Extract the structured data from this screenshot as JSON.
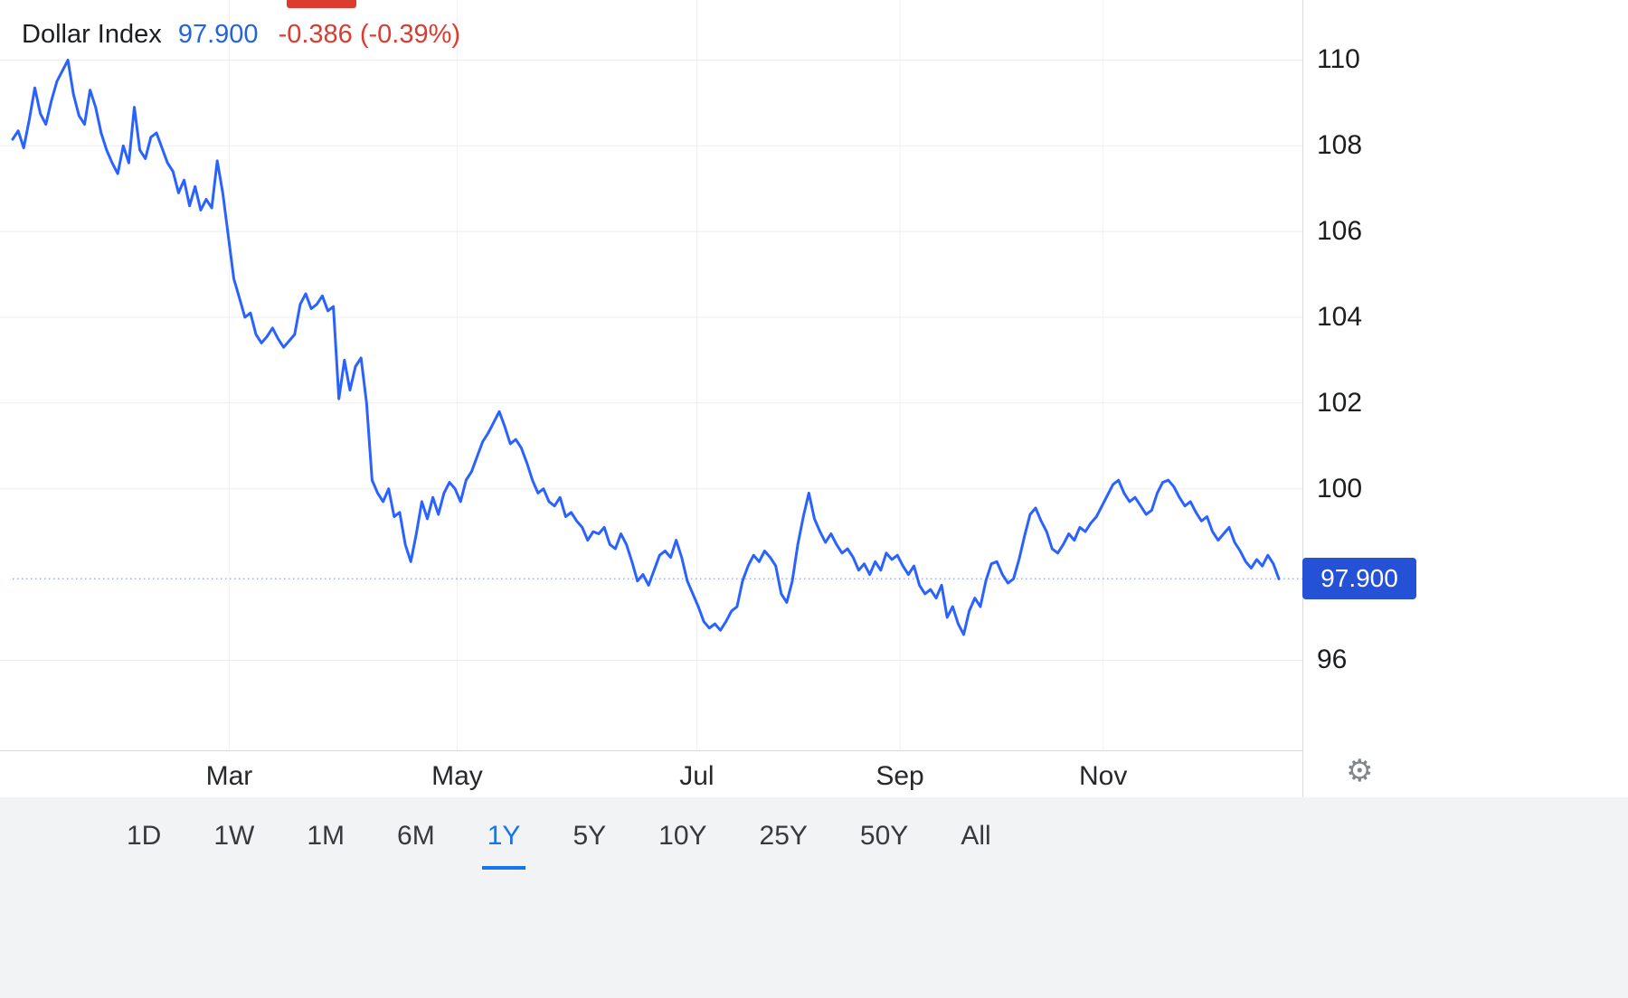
{
  "header": {
    "title": "Dollar Index",
    "price": "97.900",
    "change": "-0.386 (-0.39%)"
  },
  "toolbar": {
    "ranges": [
      {
        "label": "1D",
        "active": false
      },
      {
        "label": "1W",
        "active": false
      },
      {
        "label": "1M",
        "active": false
      },
      {
        "label": "6M",
        "active": false
      },
      {
        "label": "1Y",
        "active": true
      },
      {
        "label": "5Y",
        "active": false
      },
      {
        "label": "10Y",
        "active": false
      },
      {
        "label": "25Y",
        "active": false
      },
      {
        "label": "50Y",
        "active": false
      },
      {
        "label": "All",
        "active": false
      }
    ]
  },
  "icons": {
    "settings": "gear-icon"
  },
  "colors": {
    "line": "#2962ff",
    "badge_bg": "#2451d6",
    "header_blue": "#2264e0",
    "red": "#dc3b30",
    "grid": "#ebedf0",
    "axis_line": "#d7dadd",
    "toolbar_bg": "#f1f3f4",
    "active": "#1a73e8"
  },
  "chart_data": {
    "type": "line",
    "title": "Dollar Index",
    "xlabel": "",
    "ylabel": "",
    "legend_position": "none",
    "grid": true,
    "x_axis_type": "time",
    "selected_range": "1Y",
    "last_price": 97.9,
    "last_price_label": "97.900",
    "change": -0.386,
    "change_pct": -0.39,
    "ylim": [
      93.9,
      111.4
    ],
    "y_ticks": [
      110,
      108,
      106,
      104,
      102,
      100,
      96
    ],
    "x_ticks": [
      {
        "label": "Mar",
        "pos": 0.176
      },
      {
        "label": "May",
        "pos": 0.351
      },
      {
        "label": "Jul",
        "pos": 0.535
      },
      {
        "label": "Sep",
        "pos": 0.691
      },
      {
        "label": "Nov",
        "pos": 0.847
      }
    ],
    "series": [
      {
        "name": "Dollar Index",
        "values": [
          108.15,
          108.35,
          107.95,
          108.6,
          109.35,
          108.75,
          108.5,
          109.05,
          109.5,
          109.75,
          110.0,
          109.2,
          108.7,
          108.5,
          109.3,
          108.9,
          108.3,
          107.9,
          107.6,
          107.35,
          108.0,
          107.6,
          108.9,
          107.9,
          107.7,
          108.2,
          108.3,
          107.95,
          107.6,
          107.4,
          106.9,
          107.2,
          106.6,
          107.05,
          106.5,
          106.75,
          106.55,
          107.65,
          106.9,
          105.9,
          104.9,
          104.45,
          104.0,
          104.1,
          103.6,
          103.4,
          103.55,
          103.75,
          103.5,
          103.3,
          103.45,
          103.6,
          104.3,
          104.55,
          104.2,
          104.3,
          104.5,
          104.15,
          104.25,
          102.1,
          103.0,
          102.3,
          102.85,
          103.05,
          102.0,
          100.2,
          99.9,
          99.7,
          100.0,
          99.35,
          99.45,
          98.7,
          98.3,
          98.95,
          99.7,
          99.3,
          99.8,
          99.4,
          99.9,
          100.15,
          100.0,
          99.7,
          100.2,
          100.4,
          100.75,
          101.1,
          101.3,
          101.55,
          101.8,
          101.45,
          101.05,
          101.15,
          100.95,
          100.6,
          100.2,
          99.9,
          100.0,
          99.7,
          99.6,
          99.8,
          99.35,
          99.45,
          99.25,
          99.1,
          98.8,
          99.0,
          98.95,
          99.1,
          98.7,
          98.6,
          98.95,
          98.7,
          98.3,
          97.85,
          98.0,
          97.75,
          98.1,
          98.45,
          98.55,
          98.4,
          98.8,
          98.4,
          97.85,
          97.55,
          97.25,
          96.9,
          96.75,
          96.85,
          96.7,
          96.9,
          97.15,
          97.25,
          97.85,
          98.2,
          98.45,
          98.3,
          98.55,
          98.4,
          98.2,
          97.55,
          97.35,
          97.85,
          98.7,
          99.35,
          99.9,
          99.3,
          99.0,
          98.75,
          98.95,
          98.7,
          98.5,
          98.6,
          98.4,
          98.1,
          98.25,
          98.0,
          98.3,
          98.1,
          98.5,
          98.35,
          98.45,
          98.2,
          98.0,
          98.2,
          97.75,
          97.55,
          97.65,
          97.45,
          97.75,
          97.0,
          97.25,
          96.85,
          96.6,
          97.15,
          97.45,
          97.25,
          97.85,
          98.25,
          98.3,
          98.0,
          97.8,
          97.9,
          98.35,
          98.9,
          99.4,
          99.55,
          99.25,
          99.0,
          98.6,
          98.5,
          98.7,
          98.95,
          98.8,
          99.1,
          99.0,
          99.2,
          99.35,
          99.6,
          99.85,
          100.1,
          100.2,
          99.9,
          99.7,
          99.8,
          99.6,
          99.4,
          99.5,
          99.9,
          100.15,
          100.2,
          100.05,
          99.8,
          99.6,
          99.7,
          99.45,
          99.25,
          99.35,
          99.0,
          98.8,
          98.95,
          99.1,
          98.75,
          98.55,
          98.3,
          98.15,
          98.35,
          98.2,
          98.45,
          98.25,
          97.9
        ]
      }
    ]
  }
}
